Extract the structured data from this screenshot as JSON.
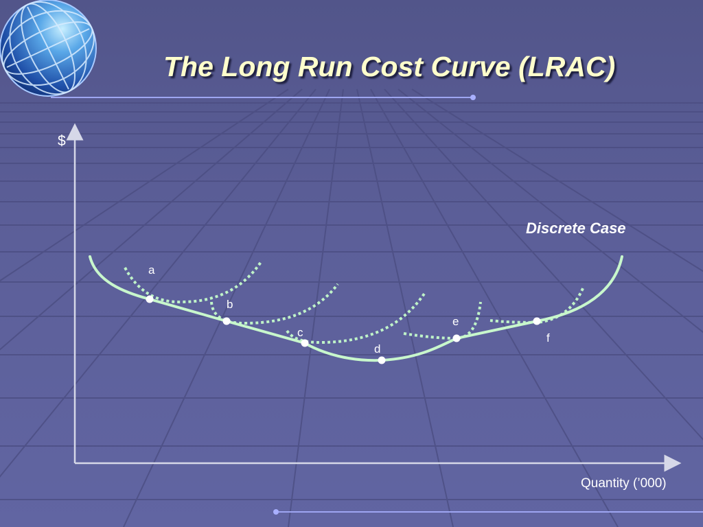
{
  "slide": {
    "title": "The Long Run Cost Curve (LRAC)"
  },
  "chart": {
    "y_axis_label": "$",
    "x_axis_label": "Quantity (’000)",
    "case_label": "Discrete Case",
    "points": [
      {
        "id": "a",
        "label": "a"
      },
      {
        "id": "b",
        "label": "b"
      },
      {
        "id": "c",
        "label": "c"
      },
      {
        "id": "d",
        "label": "d"
      },
      {
        "id": "e",
        "label": "e"
      },
      {
        "id": "f",
        "label": "f"
      }
    ],
    "colors": {
      "lrac_curve": "#c8f7cc",
      "srac_curves": "#bff3c8",
      "axes": "#d6d8e8",
      "points": "#ffffff",
      "title_text": "#ffffcc"
    }
  }
}
